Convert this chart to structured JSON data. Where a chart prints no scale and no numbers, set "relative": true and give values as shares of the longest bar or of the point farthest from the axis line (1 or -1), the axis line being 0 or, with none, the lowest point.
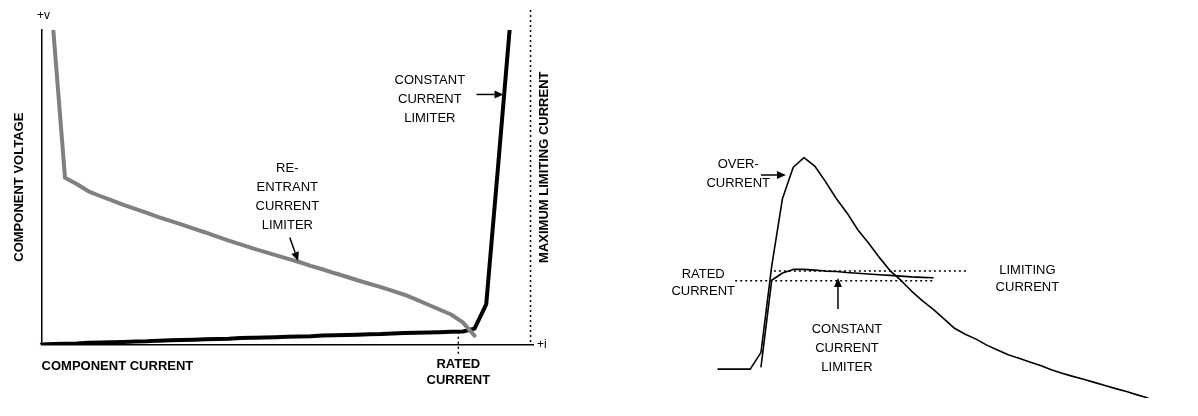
{
  "chart_data": [
    {
      "type": "line",
      "relative": true,
      "xlabel": "COMPONENT CURRENT",
      "ylabel": "COMPONENT VOLTAGE",
      "marker": "none",
      "line_style": "solid",
      "legend": false,
      "grid": false,
      "categories": [
        null,
        null,
        null,
        null,
        null,
        null,
        null,
        null,
        null,
        null,
        null,
        null,
        null,
        null,
        null,
        null,
        null,
        null,
        null,
        null,
        null,
        null,
        null,
        null,
        null,
        null,
        null,
        null,
        null,
        null,
        null,
        null,
        null,
        null,
        null,
        null,
        null,
        null,
        null,
        null,
        null,
        null,
        null
      ],
      "series": [
        {
          "color": "#808080",
          "values": [
            null,
            1,
            0.53,
            0.51,
            0.487,
            0.472,
            0.458,
            0.444,
            0.431,
            0.418,
            0.405,
            0.393,
            0.381,
            0.368,
            0.356,
            0.343,
            0.33,
            0.318,
            0.306,
            0.295,
            0.284,
            0.273,
            0.262,
            0.25,
            0.239,
            0.227,
            0.216,
            0.204,
            0.193,
            0.182,
            0.17,
            0.158,
            0.143,
            0.127,
            0.111,
            0.095,
            0.07,
            0.028,
            null,
            null,
            null,
            null,
            null
          ]
        },
        {
          "color": "#000000",
          "values": [
            0,
            0.001,
            0.002,
            0.003,
            0.005,
            0.006,
            0.007,
            0.008,
            0.009,
            0.01,
            0.012,
            0.013,
            0.014,
            0.015,
            0.016,
            0.017,
            0.018,
            0.02,
            0.021,
            0.022,
            0.023,
            0.024,
            0.025,
            0.026,
            0.028,
            0.029,
            0.03,
            0.031,
            0.032,
            0.033,
            0.035,
            0.036,
            0.037,
            0.038,
            0.039,
            0.04,
            0.041,
            0.05,
            0.127,
            0.56,
            1,
            null,
            null
          ]
        }
      ],
      "annotations": [
        "+v",
        "+i",
        "CONSTANT CURRENT LIMITER",
        "RE-ENTRANT CURRENT LIMITER",
        "MAXIMUM LIMITING CURRENT",
        "RATED CURRENT"
      ]
    },
    {
      "type": "line",
      "relative": true,
      "marker": "none",
      "line_style": "solid",
      "legend": false,
      "grid": false,
      "categories": [
        null,
        null,
        null,
        null,
        null,
        null,
        null,
        null,
        null,
        null,
        null,
        null,
        null,
        null,
        null,
        null,
        null,
        null,
        null,
        null,
        null,
        null,
        null,
        null,
        null,
        null,
        null,
        null,
        null,
        null,
        null,
        null,
        null,
        null,
        null,
        null,
        null,
        null,
        null,
        null,
        null
      ],
      "series": [
        {
          "color": "#000000",
          "values": [
            0.12,
            0.12,
            0.12,
            0.12,
            0.19,
            0.55,
            0.83,
            0.96,
            1,
            0.965,
            0.9,
            0.83,
            0.77,
            0.7,
            0.645,
            0.585,
            0.53,
            0.49,
            0.445,
            0.405,
            0.37,
            0.33,
            0.29,
            0.265,
            0.245,
            0.22,
            0.2,
            0.18,
            0.165,
            0.15,
            0.135,
            0.118,
            0.103,
            0.09,
            0.078,
            0.065,
            0.052,
            0.039,
            0.027,
            0.013,
            0
          ]
        },
        {
          "color": "#000000",
          "values": [
            null,
            null,
            null,
            null,
            0.13,
            0.49,
            0.52,
            0.535,
            0.535,
            0.532,
            0.528,
            0.526,
            0.522,
            0.519,
            0.516,
            0.513,
            0.51,
            0.507,
            0.504,
            0.502,
            0.5,
            null,
            null,
            null,
            null,
            null,
            null,
            null,
            null,
            null,
            null,
            null,
            null,
            null,
            null,
            null,
            null,
            null,
            null,
            null,
            null
          ]
        }
      ],
      "ref_lines": [
        {
          "axis": "y",
          "value": 0.528,
          "label": "LIMITING CURRENT",
          "line_style": "dotted"
        },
        {
          "axis": "y",
          "value": 0.488,
          "label": "RATED CURRENT",
          "line_style": "dotted"
        }
      ],
      "annotations": [
        "OVER-CURRENT",
        "CONSTANT CURRENT LIMITER"
      ]
    }
  ]
}
